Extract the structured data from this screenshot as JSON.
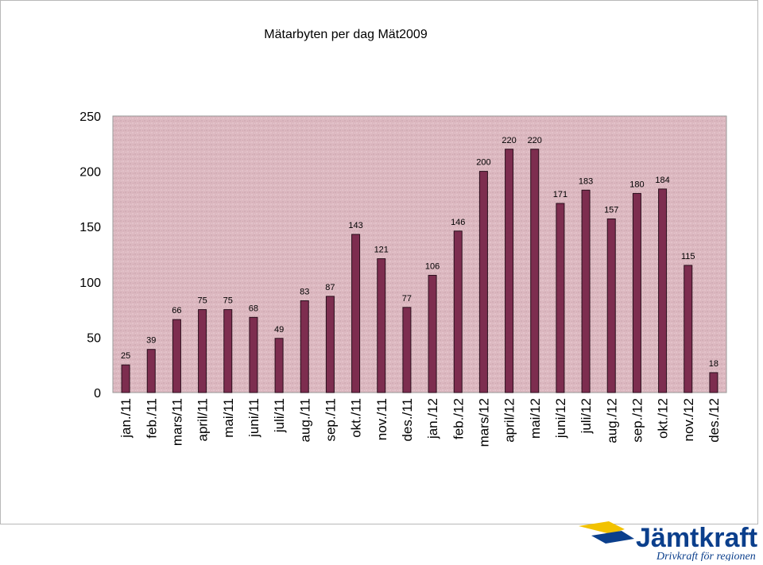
{
  "chart_data": {
    "type": "bar",
    "title": "Mätarbyten per dag Mät2009",
    "xlabel": "",
    "ylabel": "",
    "ylim": [
      0,
      250
    ],
    "yticks": [
      0,
      50,
      100,
      150,
      200,
      250
    ],
    "grid": false,
    "categories": [
      "jan./11",
      "feb./11",
      "mars/11",
      "april/11",
      "mai/11",
      "juni/11",
      "juli/11",
      "aug./11",
      "sep./11",
      "okt./11",
      "nov./11",
      "des./11",
      "jan./12",
      "feb./12",
      "mars/12",
      "april/12",
      "mai/12",
      "juni/12",
      "juli/12",
      "aug./12",
      "sep./12",
      "okt./12",
      "nov./12",
      "des./12"
    ],
    "values": [
      25,
      39,
      66,
      75,
      75,
      68,
      49,
      83,
      87,
      143,
      121,
      77,
      106,
      146,
      200,
      220,
      220,
      171,
      183,
      157,
      180,
      184,
      115,
      18
    ],
    "bar_color": "#7d2d4f",
    "plot_background": "#dcb8c0"
  },
  "logo": {
    "brand": "Jämtkraft",
    "tagline": "Drivkraft för regionen",
    "color": "#0b3f8c",
    "accent": "#f2c200"
  }
}
